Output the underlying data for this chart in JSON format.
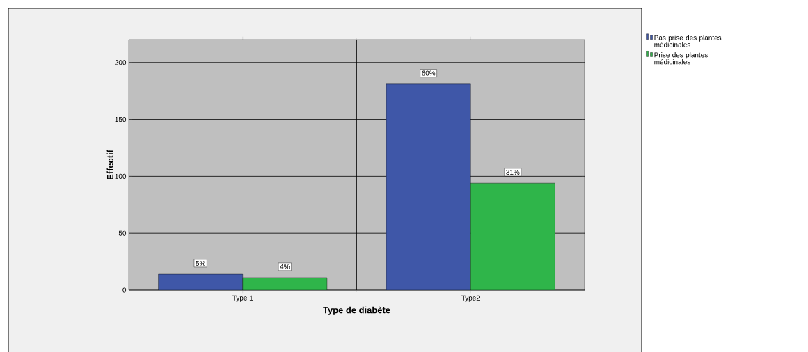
{
  "chart_data": {
    "type": "bar",
    "xlabel": "Type de diabète",
    "ylabel": "Effectif",
    "categories": [
      "Type 1",
      "Type2"
    ],
    "series": [
      {
        "name": "Pas prise des plantes médicinales",
        "color": "#3f57a8",
        "values": [
          14,
          181
        ]
      },
      {
        "name": "Prise des plantes médicinales",
        "color": "#2fb54a",
        "values": [
          11,
          94
        ]
      }
    ],
    "annotations": [
      "5%",
      "4%",
      "60%",
      "31%"
    ],
    "ylim": [
      0,
      220
    ],
    "yticks": [
      0,
      50,
      100,
      150,
      200
    ],
    "grid": true,
    "legend": "top right"
  }
}
